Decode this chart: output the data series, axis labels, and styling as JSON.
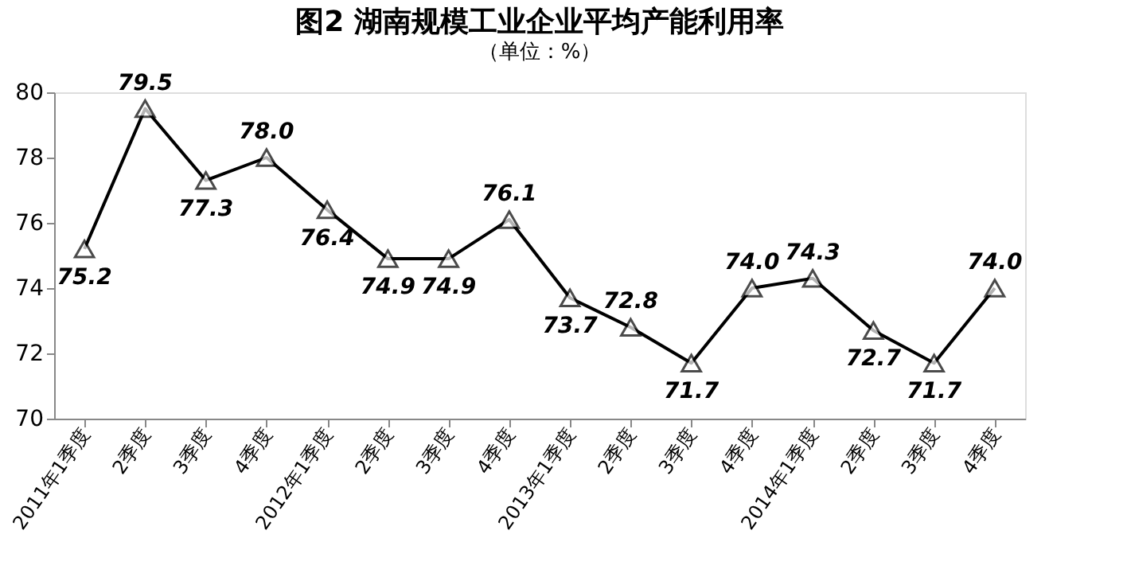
{
  "chart_data": {
    "type": "line",
    "title": "图2  湖南规模工业企业平均产能利用率",
    "subtitle": "（单位：%）",
    "categories": [
      "2011年1季度",
      "2季度",
      "3季度",
      "4季度",
      "2012年1季度",
      "2季度",
      "3季度",
      "4季度",
      "2013年1季度",
      "2季度",
      "3季度",
      "4季度",
      "2014年1季度",
      "2季度",
      "3季度",
      "4季度"
    ],
    "series": [
      {
        "color": "#000000",
        "values": [
          75.2,
          79.5,
          77.3,
          78.0,
          76.4,
          74.9,
          74.9,
          76.1,
          73.7,
          72.8,
          71.7,
          74.0,
          74.3,
          72.7,
          71.7,
          74.0
        ]
      }
    ],
    "ylim": [
      70,
      80
    ],
    "yticks": [
      70,
      72,
      74,
      76,
      78,
      80
    ],
    "value_labels": [
      "75.2",
      "79.5",
      "77.3",
      "78.0",
      "76.4",
      "74.9",
      "74.9",
      "76.1",
      "73.7",
      "72.8",
      "71.7",
      "74.0",
      "74.3",
      "72.7",
      "71.7",
      "74.0"
    ],
    "grid": false,
    "marker": "triangle",
    "line_style": "solid"
  }
}
